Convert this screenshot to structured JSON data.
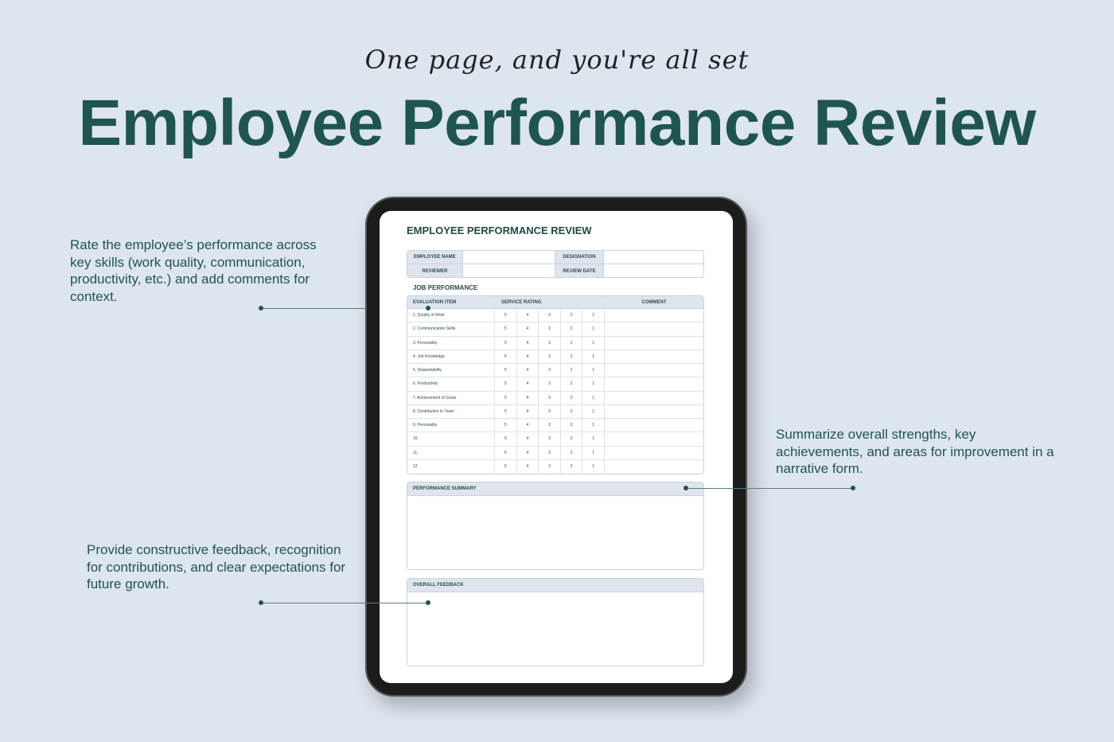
{
  "tagline": "One page, and you're all set",
  "title": "Employee Performance Review",
  "callouts": {
    "rate": "Rate the employee’s performance across key skills (work quality, communication, productivity, etc.) and add comments for context.",
    "summary": "Summarize overall strengths, key achievements, and areas for improvement in a narrative form.",
    "feedback": "Provide constructive feedback, recognition for contributions, and clear expectations for future growth."
  },
  "document": {
    "title": "EMPLOYEE PERFORMANCE REVIEW",
    "info": {
      "employee_name": "EMPLOYEE NAME",
      "designation": "DESIGNATION",
      "reviewer": "REVIEWER",
      "review_date": "REVIEW DATE"
    },
    "job_performance": {
      "title": "JOB PERFORMANCE",
      "headers": {
        "item": "EVALUATION ITEM",
        "rating": "SERVICE RATING",
        "comment": "COMMENT"
      },
      "ratings": [
        "5",
        "4",
        "3",
        "2",
        "1"
      ],
      "items": [
        "1. Quality of Work",
        "2. Communication Skills",
        "3. Personality",
        "4. Job Knowledge",
        "5. Dependability",
        "6. Productivity",
        "7. Achievement of Goals",
        "8. Contribution to Team",
        "9. Personality",
        "10.",
        "11.",
        "12."
      ]
    },
    "performance_summary": "PERFORMANCE SUMMARY",
    "overall_feedback": "OVERALL FEEDBACK"
  },
  "colors": {
    "background": "#dde5ef",
    "accent": "#1f5550",
    "header_fill": "#dfe5ee"
  }
}
